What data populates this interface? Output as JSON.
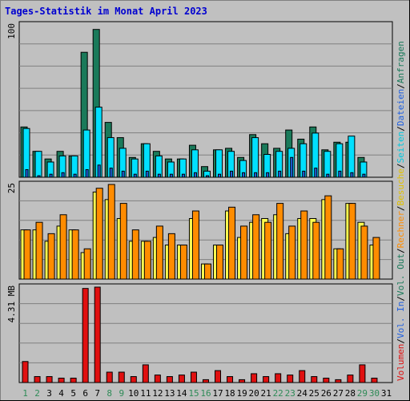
{
  "title": "Tages-Statistik im Monat April 2023",
  "colors": {
    "title": "#0000d0",
    "anfragen": "#1a7a5a",
    "dateien": "#00e0ff",
    "seiten": "#2060e0",
    "besuche": "#ffff50",
    "rechner": "#ff8c00",
    "volumen": "#e01010",
    "label_in": "#2060e0",
    "label_out": "#1a7a5a",
    "weekend_day": "#2e8b57",
    "weekday_day": "#000000"
  },
  "right_labels": [
    {
      "segments": [
        {
          "text": "Anfragen",
          "color": "#1a7a5a"
        },
        {
          "text": "/",
          "color": "#000000"
        },
        {
          "text": "Dateien",
          "color": "#2060e0"
        },
        {
          "text": "/",
          "color": "#000000"
        },
        {
          "text": "Seiten",
          "color": "#00c8e0"
        },
        {
          "text": "/",
          "color": "#000000"
        },
        {
          "text": "Besuche",
          "color": "#e0c000"
        },
        {
          "text": "/",
          "color": "#000000"
        },
        {
          "text": "Rechner",
          "color": "#ff8c00"
        },
        {
          "text": "/",
          "color": "#000000"
        },
        {
          "text": "Vol. Out",
          "color": "#1a7a5a"
        },
        {
          "text": "/",
          "color": "#000000"
        },
        {
          "text": "Vol. In",
          "color": "#2060e0"
        },
        {
          "text": "/",
          "color": "#000000"
        },
        {
          "text": "Volumen",
          "color": "#e01010"
        }
      ]
    }
  ],
  "chart_data": [
    {
      "type": "bar",
      "panel": "top",
      "y_max_label": "100",
      "ylim": [
        0,
        100
      ],
      "grid": true,
      "categories": [
        "1",
        "2",
        "3",
        "4",
        "5",
        "6",
        "7",
        "8",
        "9",
        "10",
        "11",
        "12",
        "13",
        "14",
        "15",
        "16",
        "17",
        "18",
        "19",
        "20",
        "21",
        "22",
        "23",
        "24",
        "25",
        "26",
        "27",
        "28",
        "29",
        "30",
        "31"
      ],
      "series": [
        {
          "name": "Anfragen",
          "color": "#1a7a5a",
          "values": [
            33,
            17,
            12,
            17,
            14,
            82,
            97,
            36,
            26,
            13,
            22,
            17,
            12,
            12,
            21,
            7,
            18,
            19,
            13,
            28,
            22,
            19,
            31,
            25,
            33,
            18,
            23,
            23,
            13,
            0,
            0
          ]
        },
        {
          "name": "Dateien",
          "color": "#00e0ff",
          "values": [
            32,
            17,
            10,
            14,
            14,
            31,
            46,
            26,
            19,
            12,
            22,
            14,
            10,
            12,
            18,
            4,
            18,
            17,
            11,
            26,
            15,
            17,
            19,
            22,
            29,
            17,
            22,
            27,
            10,
            0,
            0
          ]
        },
        {
          "name": "Seiten",
          "color": "#2060e0",
          "values": [
            5,
            1,
            2,
            3,
            2,
            5,
            8,
            6,
            4,
            2,
            4,
            2,
            2,
            2,
            3,
            1,
            2,
            4,
            3,
            3,
            3,
            4,
            13,
            4,
            6,
            2,
            4,
            3,
            2,
            0,
            0
          ]
        }
      ]
    },
    {
      "type": "bar",
      "panel": "middle",
      "y_max_label": "25",
      "ylim": [
        0,
        25
      ],
      "grid": true,
      "categories": [
        "1",
        "2",
        "3",
        "4",
        "5",
        "6",
        "7",
        "8",
        "9",
        "10",
        "11",
        "12",
        "13",
        "14",
        "15",
        "16",
        "17",
        "18",
        "19",
        "20",
        "21",
        "22",
        "23",
        "24",
        "25",
        "26",
        "27",
        "28",
        "29",
        "30",
        "31"
      ],
      "series": [
        {
          "name": "Besuche",
          "color": "#ffff50",
          "values": [
            13,
            13,
            10,
            14,
            13,
            7,
            23,
            21,
            16,
            10,
            10,
            11,
            9,
            9,
            16,
            4,
            9,
            18,
            11,
            15,
            16,
            17,
            12,
            16,
            16,
            21,
            8,
            20,
            15,
            9,
            0
          ]
        },
        {
          "name": "Rechner",
          "color": "#ff8c00",
          "values": [
            13,
            15,
            12,
            17,
            13,
            8,
            24,
            25,
            20,
            13,
            10,
            14,
            12,
            9,
            18,
            4,
            9,
            19,
            14,
            17,
            15,
            20,
            14,
            18,
            15,
            22,
            8,
            20,
            14,
            11,
            0
          ]
        }
      ]
    },
    {
      "type": "bar",
      "panel": "bottom",
      "y_max_label": "4.31 MB",
      "ylim": [
        0,
        4.31
      ],
      "grid": true,
      "categories": [
        "1",
        "2",
        "3",
        "4",
        "5",
        "6",
        "7",
        "8",
        "9",
        "10",
        "11",
        "12",
        "13",
        "14",
        "15",
        "16",
        "17",
        "18",
        "19",
        "20",
        "21",
        "22",
        "23",
        "24",
        "25",
        "26",
        "27",
        "28",
        "29",
        "30",
        "31"
      ],
      "series": [
        {
          "name": "Volumen",
          "color": "#e01010",
          "values": [
            0.95,
            0.27,
            0.27,
            0.2,
            0.2,
            4.25,
            4.31,
            0.47,
            0.47,
            0.27,
            0.8,
            0.34,
            0.27,
            0.34,
            0.47,
            0.13,
            0.54,
            0.27,
            0.13,
            0.4,
            0.27,
            0.4,
            0.34,
            0.54,
            0.27,
            0.2,
            0.13,
            0.34,
            0.8,
            0.2,
            0
          ]
        }
      ]
    }
  ],
  "x_days": [
    {
      "label": "1",
      "weekend": true
    },
    {
      "label": "2",
      "weekend": true
    },
    {
      "label": "3",
      "weekend": false
    },
    {
      "label": "4",
      "weekend": false
    },
    {
      "label": "5",
      "weekend": false
    },
    {
      "label": "6",
      "weekend": false
    },
    {
      "label": "7",
      "weekend": false
    },
    {
      "label": "8",
      "weekend": true
    },
    {
      "label": "9",
      "weekend": true
    },
    {
      "label": "10",
      "weekend": false
    },
    {
      "label": "11",
      "weekend": false
    },
    {
      "label": "12",
      "weekend": false
    },
    {
      "label": "13",
      "weekend": false
    },
    {
      "label": "14",
      "weekend": false
    },
    {
      "label": "15",
      "weekend": true
    },
    {
      "label": "16",
      "weekend": true
    },
    {
      "label": "17",
      "weekend": false
    },
    {
      "label": "18",
      "weekend": false
    },
    {
      "label": "19",
      "weekend": false
    },
    {
      "label": "20",
      "weekend": false
    },
    {
      "label": "21",
      "weekend": false
    },
    {
      "label": "22",
      "weekend": true
    },
    {
      "label": "23",
      "weekend": true
    },
    {
      "label": "24",
      "weekend": false
    },
    {
      "label": "25",
      "weekend": false
    },
    {
      "label": "26",
      "weekend": false
    },
    {
      "label": "27",
      "weekend": false
    },
    {
      "label": "28",
      "weekend": false
    },
    {
      "label": "29",
      "weekend": true
    },
    {
      "label": "30",
      "weekend": true
    },
    {
      "label": "31",
      "weekend": false
    }
  ]
}
